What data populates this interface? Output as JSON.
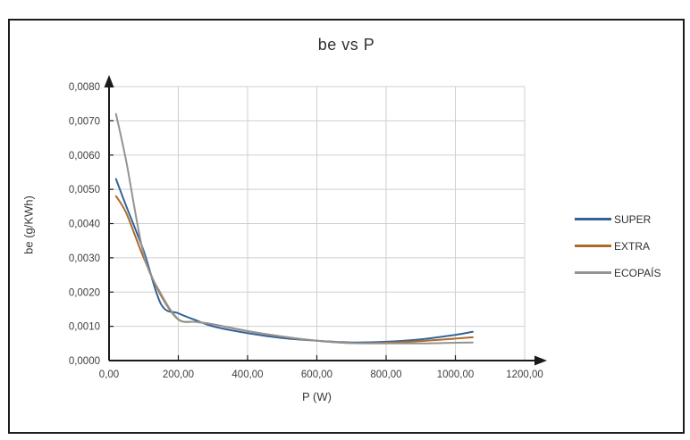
{
  "window": {
    "background": "#ffffff",
    "frame_border_color": "#1c1c1c"
  },
  "chart_data": {
    "type": "line",
    "title": "be vs P",
    "xlabel": "P (W)",
    "ylabel": "be (g/KWh)",
    "xlim": [
      0,
      1200
    ],
    "ylim": [
      0,
      0.008
    ],
    "grid": true,
    "grid_color": "#cfcfcf",
    "axis_color": "#1a1a1a",
    "tick_label_color": "#3f3f3f",
    "legend_position": "right",
    "x_ticks": {
      "values": [
        0,
        200,
        400,
        600,
        800,
        1000,
        1200
      ],
      "labels": [
        "0,00",
        "200,00",
        "400,00",
        "600,00",
        "800,00",
        "1000,00",
        "1200,00"
      ]
    },
    "y_ticks": {
      "values": [
        0,
        0.001,
        0.002,
        0.003,
        0.004,
        0.005,
        0.006,
        0.007,
        0.008
      ],
      "labels": [
        "0,0000",
        "0,0010",
        "0,0020",
        "0,0030",
        "0,0040",
        "0,0050",
        "0,0060",
        "0,0070",
        "0,0080"
      ]
    },
    "x": [
      20,
      50,
      100,
      150,
      200,
      250,
      300,
      400,
      500,
      600,
      700,
      800,
      900,
      1000,
      1050
    ],
    "series": [
      {
        "name": "SUPER",
        "color": "#31639a",
        "values": [
          0.0053,
          0.0045,
          0.0032,
          0.00165,
          0.00138,
          0.00118,
          0.001,
          0.0008,
          0.00066,
          0.00058,
          0.00053,
          0.00055,
          0.00062,
          0.00075,
          0.00084
        ]
      },
      {
        "name": "EXTRA",
        "color": "#ae6a2a",
        "values": [
          0.0048,
          0.0043,
          0.003,
          0.0019,
          0.0012,
          0.00113,
          0.00106,
          0.00086,
          0.0007,
          0.00058,
          0.00051,
          0.00052,
          0.00057,
          0.00064,
          0.00068
        ]
      },
      {
        "name": "ECOPAÍS",
        "color": "#939393",
        "values": [
          0.0072,
          0.0058,
          0.0031,
          0.00195,
          0.00121,
          0.00113,
          0.00106,
          0.00086,
          0.0007,
          0.00058,
          0.00051,
          0.0005,
          0.0005,
          0.00052,
          0.00053
        ]
      }
    ]
  }
}
